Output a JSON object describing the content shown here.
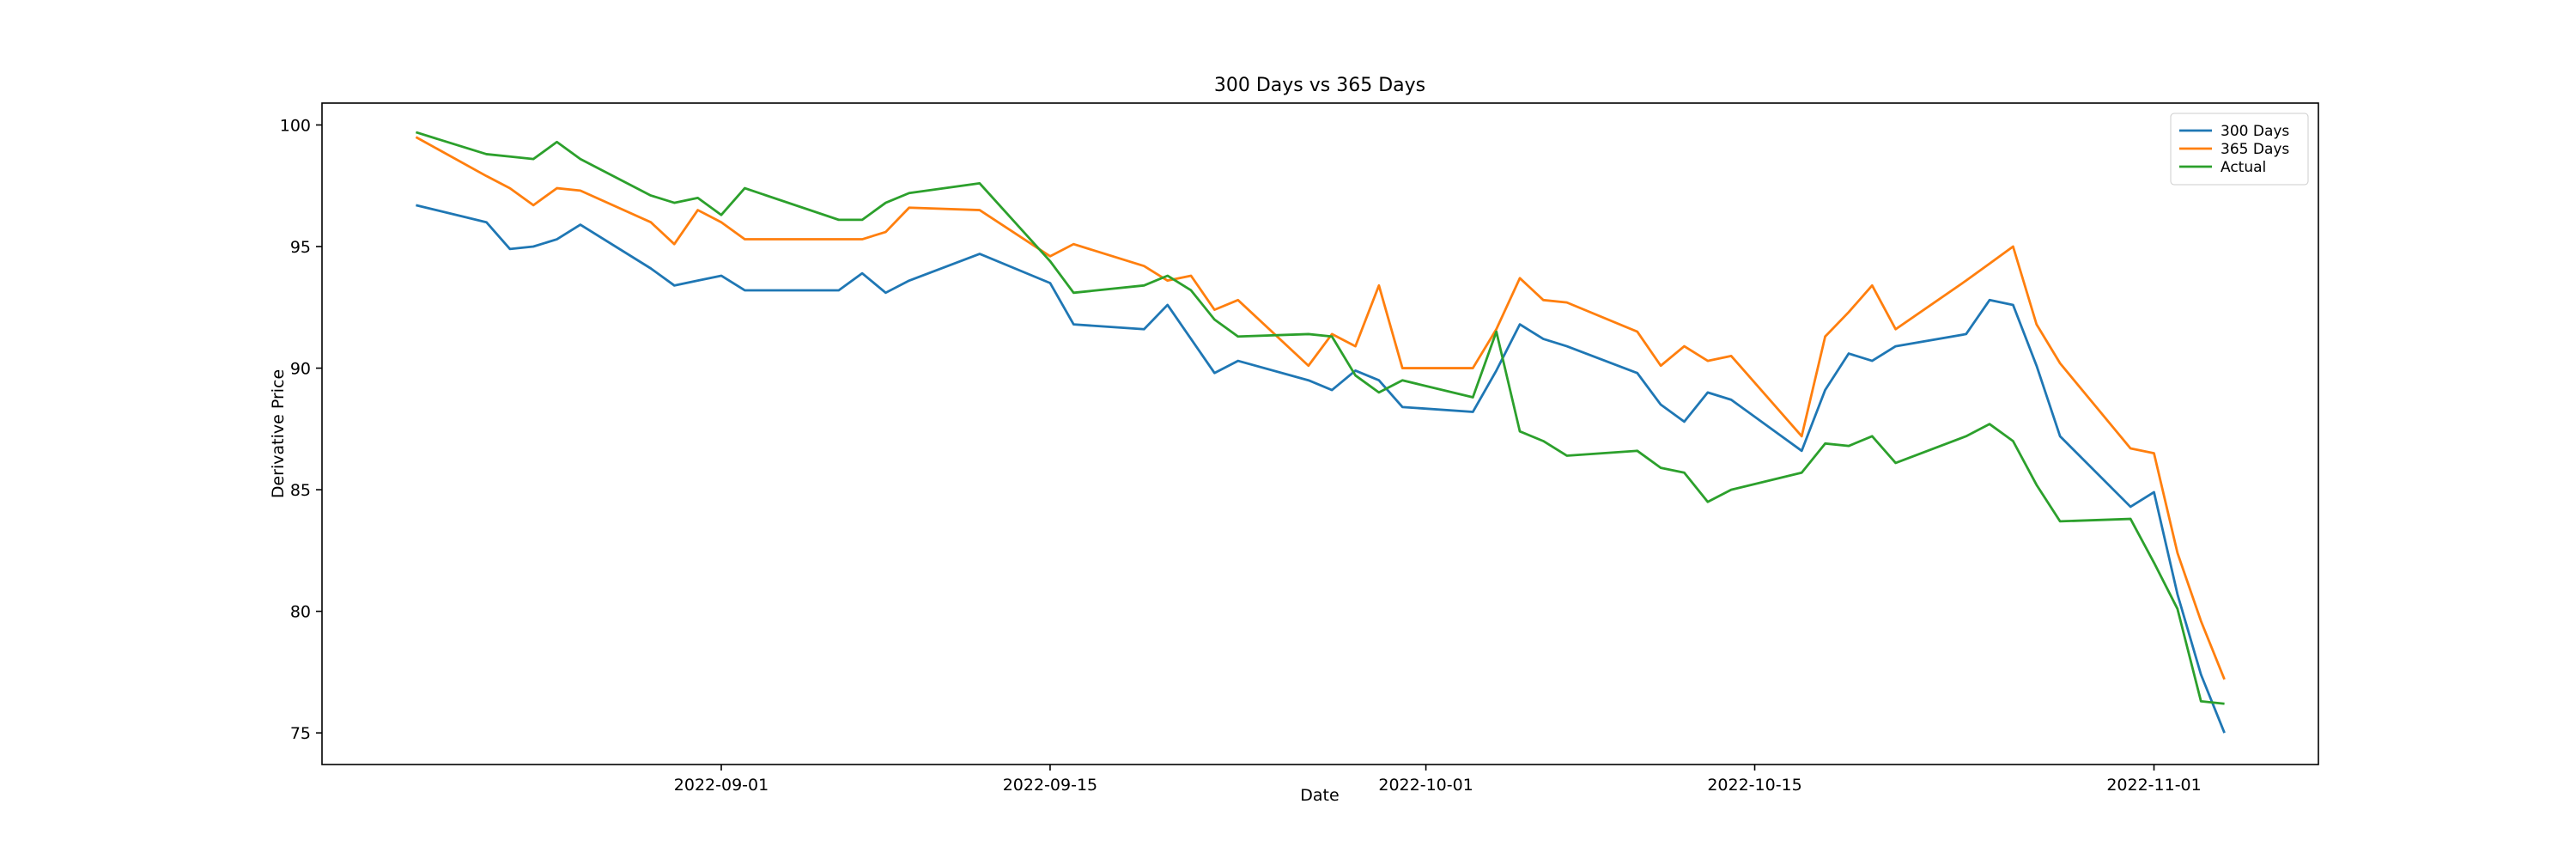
{
  "chart_data": {
    "type": "line",
    "title": "300 Days vs 365 Days",
    "xlabel": "Date",
    "ylabel": "Derivative Price",
    "x": [
      "2022-08-19",
      "2022-08-22",
      "2022-08-23",
      "2022-08-24",
      "2022-08-25",
      "2022-08-26",
      "2022-08-29",
      "2022-08-30",
      "2022-08-31",
      "2022-09-01",
      "2022-09-02",
      "2022-09-06",
      "2022-09-07",
      "2022-09-08",
      "2022-09-09",
      "2022-09-12",
      "2022-09-15",
      "2022-09-16",
      "2022-09-19",
      "2022-09-20",
      "2022-09-21",
      "2022-09-22",
      "2022-09-23",
      "2022-09-26",
      "2022-09-27",
      "2022-09-28",
      "2022-09-29",
      "2022-09-30",
      "2022-10-03",
      "2022-10-04",
      "2022-10-05",
      "2022-10-06",
      "2022-10-07",
      "2022-10-10",
      "2022-10-11",
      "2022-10-12",
      "2022-10-13",
      "2022-10-14",
      "2022-10-17",
      "2022-10-18",
      "2022-10-19",
      "2022-10-20",
      "2022-10-21",
      "2022-10-24",
      "2022-10-25",
      "2022-10-26",
      "2022-10-27",
      "2022-10-28",
      "2022-10-31",
      "2022-11-01",
      "2022-11-02",
      "2022-11-03",
      "2022-11-04"
    ],
    "series": [
      {
        "name": "300 Days",
        "color": "#1f77b4",
        "values": [
          96.7,
          96.0,
          94.9,
          95.0,
          95.3,
          95.9,
          94.1,
          93.4,
          93.6,
          93.8,
          93.2,
          93.2,
          93.9,
          93.1,
          93.6,
          94.7,
          93.5,
          91.8,
          91.6,
          92.6,
          91.2,
          89.8,
          90.3,
          89.5,
          89.1,
          89.9,
          89.5,
          88.4,
          88.2,
          89.9,
          91.8,
          91.2,
          90.9,
          89.8,
          88.5,
          87.8,
          89.0,
          88.7,
          86.6,
          89.1,
          90.6,
          90.3,
          90.9,
          91.4,
          92.8,
          92.6,
          90.1,
          87.2,
          84.3,
          84.9,
          80.7,
          77.4,
          75.0
        ]
      },
      {
        "name": "365 Days",
        "color": "#ff7f0e",
        "values": [
          99.5,
          97.9,
          97.4,
          96.7,
          97.4,
          97.3,
          96.0,
          95.1,
          96.5,
          96.0,
          95.3,
          95.3,
          95.3,
          95.6,
          96.6,
          96.5,
          94.6,
          95.1,
          94.2,
          93.6,
          93.8,
          92.4,
          92.8,
          90.1,
          91.4,
          90.9,
          93.4,
          90.0,
          90.0,
          91.6,
          93.7,
          92.8,
          92.7,
          91.5,
          90.1,
          90.9,
          90.3,
          90.5,
          87.2,
          91.3,
          92.3,
          93.4,
          91.6,
          93.6,
          94.3,
          95.0,
          91.8,
          90.2,
          86.7,
          86.5,
          82.4,
          79.6,
          77.2
        ]
      },
      {
        "name": "Actual",
        "color": "#2ca02c",
        "values": [
          99.7,
          98.8,
          98.7,
          98.6,
          99.3,
          98.6,
          97.1,
          96.8,
          97.0,
          96.3,
          97.4,
          96.1,
          96.1,
          96.8,
          97.2,
          97.6,
          94.4,
          93.1,
          93.4,
          93.8,
          93.2,
          92.0,
          91.3,
          91.4,
          91.3,
          89.7,
          89.0,
          89.5,
          88.8,
          91.5,
          87.4,
          87.0,
          86.4,
          86.6,
          85.9,
          85.7,
          84.5,
          85.0,
          85.7,
          86.9,
          86.8,
          87.2,
          86.1,
          87.2,
          87.7,
          87.0,
          85.2,
          83.7,
          83.8,
          82.0,
          80.1,
          76.3,
          76.2
        ]
      }
    ],
    "xlim": [
      "2022-08-15",
      "2022-11-08"
    ],
    "xticks": [
      "2022-09-01",
      "2022-09-15",
      "2022-10-01",
      "2022-10-15",
      "2022-11-01"
    ],
    "ylim": [
      73.7,
      100.9
    ],
    "yticks": [
      75,
      80,
      85,
      90,
      95,
      100
    ],
    "grid": false,
    "legend": "upper right"
  }
}
